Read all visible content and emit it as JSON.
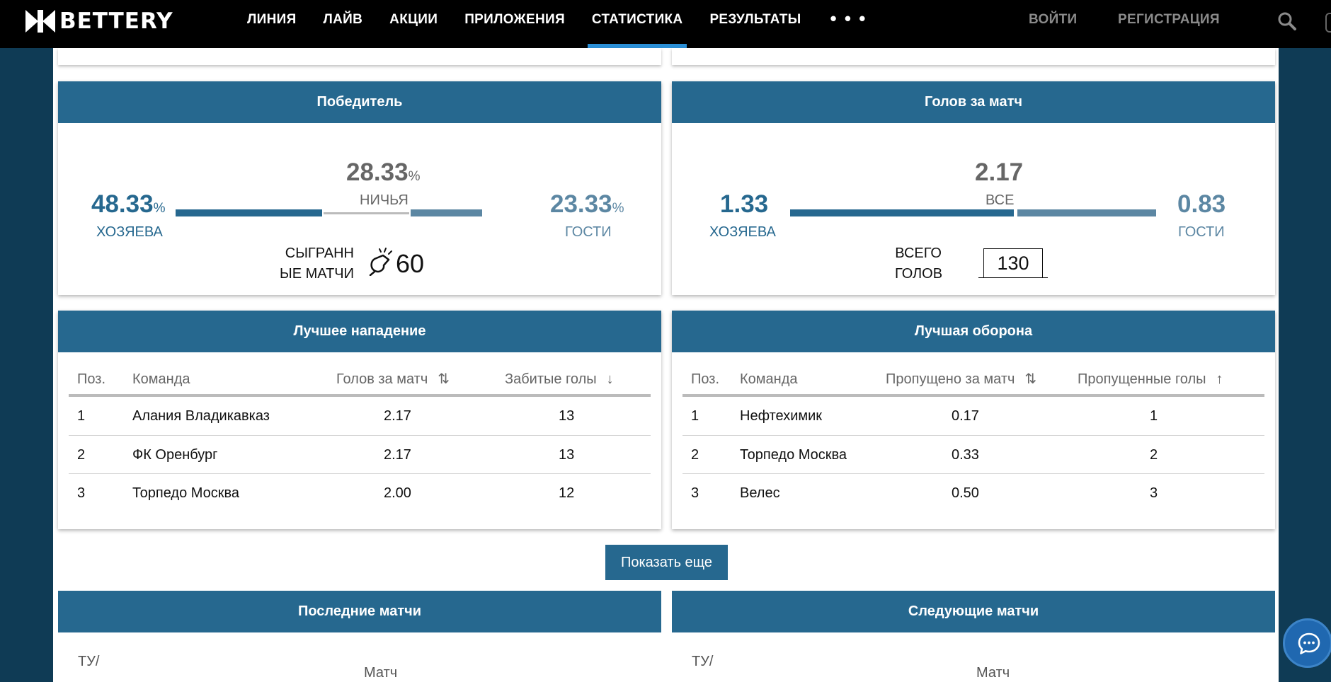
{
  "header": {
    "logo": "BETTERY",
    "nav": [
      "ЛИНИЯ",
      "ЛАЙВ",
      "АКЦИИ",
      "ПРИЛОЖЕНИЯ",
      "СТАТИСТИКА",
      "РЕЗУЛЬТАТЫ"
    ],
    "active_nav": "СТАТИСТИКА",
    "more": "• • •",
    "login": "ВОЙТИ",
    "register": "РЕГИСТРАЦИЯ"
  },
  "winner": {
    "title": "Победитель",
    "home_value": "48.33",
    "home_label": "ХОЗЯЕВА",
    "draw_value": "28.33",
    "draw_label": "НИЧЬЯ",
    "away_value": "23.33",
    "away_label": "ГОСТИ",
    "percent_sign": "%",
    "played_label_1": "СЫГРАНН",
    "played_label_2": "ЫЕ МАТЧИ",
    "played_value": "60",
    "shares": {
      "home": 48.33,
      "draw": 28.33,
      "away": 23.33
    }
  },
  "goals": {
    "title": "Голов за матч",
    "home_value": "1.33",
    "home_label": "ХОЗЯЕВА",
    "all_value": "2.17",
    "all_label": "ВСЕ",
    "away_value": "0.83",
    "away_label": "ГОСТИ",
    "total_label_1": "ВСЕГО",
    "total_label_2": "ГОЛОВ",
    "total_value": "130",
    "shares": {
      "home": 1.33,
      "away": 0.83
    }
  },
  "attack": {
    "title": "Лучшее нападение",
    "headers": {
      "pos": "Поз.",
      "team": "Команда",
      "per_match": "Голов за матч",
      "total": "Забитые голы"
    },
    "sort_icons": {
      "per_match": "⇅",
      "total": "↓"
    },
    "rows": [
      {
        "pos": "1",
        "team": "Алания Владикавказ",
        "per_match": "2.17",
        "total": "13"
      },
      {
        "pos": "2",
        "team": "ФК Оренбург",
        "per_match": "2.17",
        "total": "13"
      },
      {
        "pos": "3",
        "team": "Торпедо Москва",
        "per_match": "2.00",
        "total": "12"
      }
    ]
  },
  "defense": {
    "title": "Лучшая оборона",
    "headers": {
      "pos": "Поз.",
      "team": "Команда",
      "per_match": "Пропущено за матч",
      "total": "Пропущенные голы"
    },
    "sort_icons": {
      "per_match": "⇅",
      "total": "↑"
    },
    "rows": [
      {
        "pos": "1",
        "team": "Нефтехимик",
        "per_match": "0.17",
        "total": "1"
      },
      {
        "pos": "2",
        "team": "Торпедо Москва",
        "per_match": "0.33",
        "total": "2"
      },
      {
        "pos": "3",
        "team": "Велес",
        "per_match": "0.50",
        "total": "3"
      }
    ]
  },
  "show_more": "Показать еще",
  "last_matches": {
    "title": "Последние матчи",
    "col_tu": "ТУ/",
    "col_match": "Матч"
  },
  "next_matches": {
    "title": "Следующие матчи",
    "col_tu": "ТУ/",
    "col_match": "Матч"
  },
  "colors": {
    "accent": "#26688f",
    "away": "#5c87a3",
    "header_bg": "#000000",
    "active_underline": "#2a8fd6",
    "page_bg": "#0f3b55"
  },
  "icons": {
    "search": "search-icon",
    "whistle": "whistle-icon",
    "chat": "chat-icon"
  }
}
